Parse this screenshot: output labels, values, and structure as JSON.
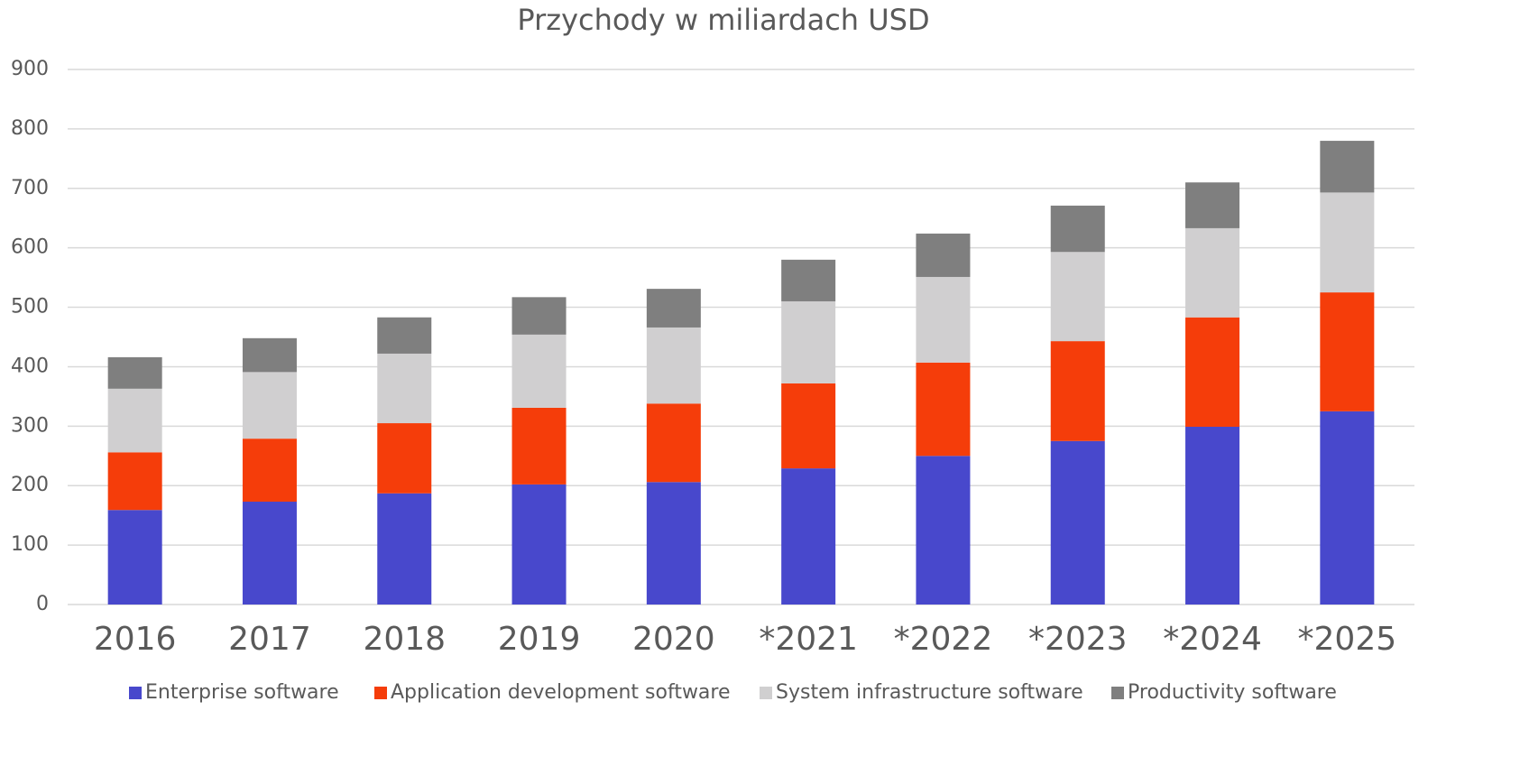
{
  "chart_data": {
    "type": "stacked_bar",
    "title": "Przychody w miliardach USD",
    "categories": [
      "2016",
      "2017",
      "2018",
      "2019",
      "2020",
      "*2021",
      "*2022",
      "*2023",
      "*2024",
      "*2025"
    ],
    "series": [
      {
        "name": "Enterprise software",
        "color": "#4848cc",
        "values": [
          159,
          173,
          187,
          202,
          206,
          229,
          250,
          275,
          299,
          325
        ]
      },
      {
        "name": "Application development software",
        "color": "#f53d0a",
        "values": [
          97,
          106,
          118,
          129,
          132,
          143,
          157,
          168,
          184,
          200
        ]
      },
      {
        "name": "System infrastructure software",
        "color": "#d0cfd0",
        "values": [
          107,
          112,
          117,
          123,
          128,
          138,
          144,
          150,
          150,
          168
        ]
      },
      {
        "name": "Productivity software",
        "color": "#7f7f7f",
        "values": [
          53,
          57,
          61,
          63,
          65,
          70,
          73,
          78,
          77,
          87
        ]
      }
    ],
    "ylim": [
      0,
      900
    ],
    "yticks": [
      0,
      100,
      200,
      300,
      400,
      500,
      600,
      700,
      800,
      900
    ],
    "grid": true,
    "legend": "bottom"
  }
}
